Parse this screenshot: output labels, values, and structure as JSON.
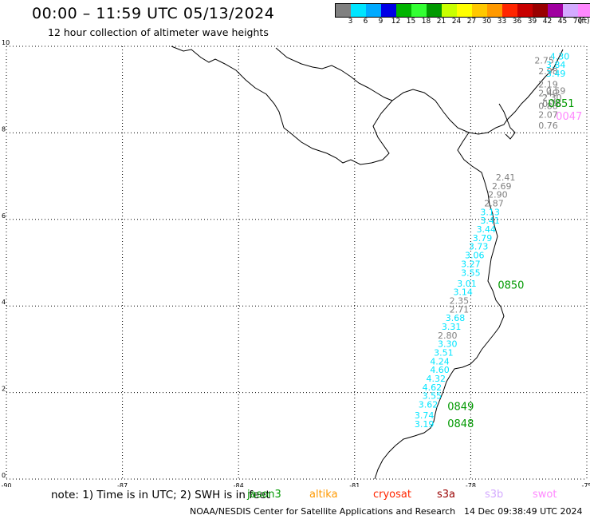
{
  "title": "00:00 – 11:59 UTC 05/13/2024",
  "subtitle": "12 hour collection of altimeter wave heights",
  "scale": {
    "unit": "(ft)",
    "colors": [
      "#808080",
      "#00e5ff",
      "#00aaff",
      "#0000e6",
      "#00b400",
      "#33ff33",
      "#009900",
      "#c8ff00",
      "#ffff00",
      "#ffc800",
      "#ff9900",
      "#ff2600",
      "#c80000",
      "#990000",
      "#a000a0",
      "#d4aaff",
      "#ff88ff",
      "#000000"
    ],
    "labels": [
      "3",
      "6",
      "9",
      "12",
      "15",
      "18",
      "21",
      "24",
      "27",
      "30",
      "33",
      "36",
      "39",
      "42",
      "45",
      "70"
    ]
  },
  "axes": {
    "x_ticks": [
      "-90",
      "-87",
      "-84",
      "-81",
      "-78",
      "-75"
    ],
    "y_ticks": [
      "0",
      "2",
      "4",
      "6",
      "8",
      "10"
    ],
    "x_range": [
      -90,
      -75
    ],
    "y_range": [
      0,
      10
    ]
  },
  "tracks": [
    {
      "label": "0851",
      "color": "#009900",
      "lon": -76.0,
      "lat": 8.6
    },
    {
      "label": "0047",
      "color": "#ff88ff",
      "lon": -75.8,
      "lat": 8.3
    },
    {
      "label": "0850",
      "color": "#009900",
      "lon": -77.3,
      "lat": 4.4
    },
    {
      "label": "0849",
      "color": "#009900",
      "lon": -78.6,
      "lat": 1.6
    },
    {
      "label": "0848",
      "color": "#009900",
      "lon": -78.6,
      "lat": 1.2
    }
  ],
  "wave_points": [
    {
      "v": "4.30",
      "c": "#00e5ff",
      "lon": -75.7,
      "lat": 9.7
    },
    {
      "v": "2.75",
      "c": "#808080",
      "lon": -76.1,
      "lat": 9.6
    },
    {
      "v": "3.84",
      "c": "#00e5ff",
      "lon": -75.8,
      "lat": 9.5
    },
    {
      "v": "2.98",
      "c": "#808080",
      "lon": -76.0,
      "lat": 9.35
    },
    {
      "v": "3.49",
      "c": "#00e5ff",
      "lon": -75.8,
      "lat": 9.3
    },
    {
      "v": "2.19",
      "c": "#808080",
      "lon": -76.0,
      "lat": 9.05
    },
    {
      "v": "0.59",
      "c": "#808080",
      "lon": -75.8,
      "lat": 8.9
    },
    {
      "v": "2.49",
      "c": "#808080",
      "lon": -76.0,
      "lat": 8.85
    },
    {
      "v": "2.30",
      "c": "#808080",
      "lon": -75.9,
      "lat": 8.75
    },
    {
      "v": "0.76",
      "c": "#808080",
      "lon": -75.9,
      "lat": 8.6
    },
    {
      "v": "0.88",
      "c": "#808080",
      "lon": -76.0,
      "lat": 8.55
    },
    {
      "v": "2.07",
      "c": "#808080",
      "lon": -76.0,
      "lat": 8.35
    },
    {
      "v": "0.76",
      "c": "#808080",
      "lon": -76.0,
      "lat": 8.1
    },
    {
      "v": "2.41",
      "c": "#808080",
      "lon": -77.1,
      "lat": 6.9
    },
    {
      "v": "2.69",
      "c": "#808080",
      "lon": -77.2,
      "lat": 6.7
    },
    {
      "v": "2.90",
      "c": "#808080",
      "lon": -77.3,
      "lat": 6.5
    },
    {
      "v": "2.87",
      "c": "#808080",
      "lon": -77.4,
      "lat": 6.3
    },
    {
      "v": "3.13",
      "c": "#00e5ff",
      "lon": -77.5,
      "lat": 6.1
    },
    {
      "v": "3.41",
      "c": "#00e5ff",
      "lon": -77.5,
      "lat": 5.9
    },
    {
      "v": "3.44",
      "c": "#00e5ff",
      "lon": -77.6,
      "lat": 5.7
    },
    {
      "v": "3.79",
      "c": "#00e5ff",
      "lon": -77.7,
      "lat": 5.5
    },
    {
      "v": "3.73",
      "c": "#00e5ff",
      "lon": -77.8,
      "lat": 5.3
    },
    {
      "v": "3.06",
      "c": "#00e5ff",
      "lon": -77.9,
      "lat": 5.1
    },
    {
      "v": "3.27",
      "c": "#00e5ff",
      "lon": -78.0,
      "lat": 4.9
    },
    {
      "v": "3.55",
      "c": "#00e5ff",
      "lon": -78.0,
      "lat": 4.7
    },
    {
      "v": "3.01",
      "c": "#00e5ff",
      "lon": -78.1,
      "lat": 4.45
    },
    {
      "v": "3.14",
      "c": "#00e5ff",
      "lon": -78.2,
      "lat": 4.25
    },
    {
      "v": "2.35",
      "c": "#808080",
      "lon": -78.3,
      "lat": 4.05
    },
    {
      "v": "2.71",
      "c": "#808080",
      "lon": -78.3,
      "lat": 3.85
    },
    {
      "v": "3.68",
      "c": "#00e5ff",
      "lon": -78.4,
      "lat": 3.65
    },
    {
      "v": "3.31",
      "c": "#00e5ff",
      "lon": -78.5,
      "lat": 3.45
    },
    {
      "v": "2.80",
      "c": "#808080",
      "lon": -78.6,
      "lat": 3.25
    },
    {
      "v": "3.30",
      "c": "#00e5ff",
      "lon": -78.6,
      "lat": 3.05
    },
    {
      "v": "3.51",
      "c": "#00e5ff",
      "lon": -78.7,
      "lat": 2.85
    },
    {
      "v": "4.24",
      "c": "#00e5ff",
      "lon": -78.8,
      "lat": 2.65
    },
    {
      "v": "4.60",
      "c": "#00e5ff",
      "lon": -78.8,
      "lat": 2.45
    },
    {
      "v": "4.32",
      "c": "#00e5ff",
      "lon": -78.9,
      "lat": 2.25
    },
    {
      "v": "4.62",
      "c": "#00e5ff",
      "lon": -79.0,
      "lat": 2.05
    },
    {
      "v": "3.55",
      "c": "#00e5ff",
      "lon": -79.0,
      "lat": 1.85
    },
    {
      "v": "3.62",
      "c": "#00e5ff",
      "lon": -79.1,
      "lat": 1.65
    },
    {
      "v": "3.74",
      "c": "#00e5ff",
      "lon": -79.2,
      "lat": 1.4
    },
    {
      "v": "3.19",
      "c": "#00e5ff",
      "lon": -79.2,
      "lat": 1.2
    }
  ],
  "note": "note: 1) Time is in UTC; 2) SWH is in feet",
  "satellites": [
    {
      "name": "jason3",
      "color": "#009900"
    },
    {
      "name": "altika",
      "color": "#ff9900"
    },
    {
      "name": "cryosat",
      "color": "#ff2600"
    },
    {
      "name": "s3a",
      "color": "#990000"
    },
    {
      "name": "s3b",
      "color": "#d4aaff"
    },
    {
      "name": "swot",
      "color": "#ff88ff"
    }
  ],
  "footer": "NOAA/NESDIS Center for Satellite Applications and Research",
  "footer_time": "14 Dec 09:38:49 UTC 2024"
}
